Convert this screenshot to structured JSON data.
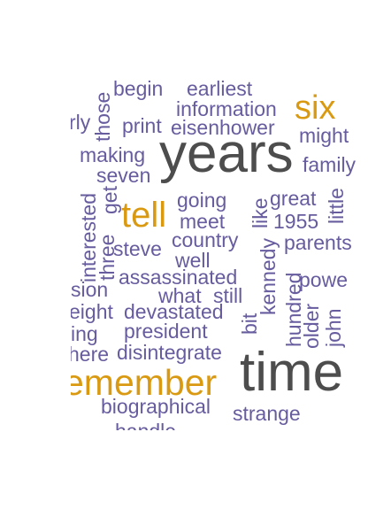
{
  "colors": {
    "small": "#665c9e",
    "medium": "#d99a12",
    "large": "#4d4d4d"
  },
  "words": [
    {
      "id": "w-years",
      "text": "years",
      "tier": "large"
    },
    {
      "id": "w-time",
      "text": "time",
      "tier": "large"
    },
    {
      "id": "w-six",
      "text": "six",
      "tier": "medium"
    },
    {
      "id": "w-tell",
      "text": "tell",
      "tier": "medium"
    },
    {
      "id": "w-remember",
      "text": "emember",
      "tier": "medium"
    },
    {
      "id": "w-begin",
      "text": "begin",
      "tier": "small"
    },
    {
      "id": "w-earliest",
      "text": "earliest",
      "tier": "small"
    },
    {
      "id": "w-information",
      "text": "information",
      "tier": "small"
    },
    {
      "id": "w-early",
      "text": "rly",
      "tier": "small"
    },
    {
      "id": "w-print",
      "text": "print",
      "tier": "small"
    },
    {
      "id": "w-eisenhower",
      "text": "eisenhower",
      "tier": "small"
    },
    {
      "id": "w-might",
      "text": "might",
      "tier": "small"
    },
    {
      "id": "w-those",
      "text": "those",
      "tier": "small"
    },
    {
      "id": "w-making",
      "text": "making",
      "tier": "small"
    },
    {
      "id": "w-family",
      "text": "family",
      "tier": "small"
    },
    {
      "id": "w-seven",
      "text": "seven",
      "tier": "small"
    },
    {
      "id": "w-going",
      "text": "going",
      "tier": "small"
    },
    {
      "id": "w-great",
      "text": "great",
      "tier": "small"
    },
    {
      "id": "w-little",
      "text": "little",
      "tier": "small"
    },
    {
      "id": "w-get",
      "text": "get",
      "tier": "small"
    },
    {
      "id": "w-meet",
      "text": "meet",
      "tier": "small"
    },
    {
      "id": "w-like",
      "text": "like",
      "tier": "small"
    },
    {
      "id": "w-1955",
      "text": "1955",
      "tier": "small"
    },
    {
      "id": "w-interested",
      "text": "interested",
      "tier": "small"
    },
    {
      "id": "w-three",
      "text": "three",
      "tier": "small"
    },
    {
      "id": "w-country",
      "text": "country",
      "tier": "small"
    },
    {
      "id": "w-parents",
      "text": "parents",
      "tier": "small"
    },
    {
      "id": "w-steve",
      "text": "steve",
      "tier": "small"
    },
    {
      "id": "w-well",
      "text": "well",
      "tier": "small"
    },
    {
      "id": "w-kennedy",
      "text": "kennedy",
      "tier": "small"
    },
    {
      "id": "w-assassinated",
      "text": "assassinated",
      "tier": "small"
    },
    {
      "id": "w-power",
      "text": "powe",
      "tier": "small"
    },
    {
      "id": "w-sion",
      "text": "sion",
      "tier": "small"
    },
    {
      "id": "w-what",
      "text": "what",
      "tier": "small"
    },
    {
      "id": "w-still",
      "text": "still",
      "tier": "small"
    },
    {
      "id": "w-hundred",
      "text": "hundred",
      "tier": "small"
    },
    {
      "id": "w-eight",
      "text": "eight",
      "tier": "small"
    },
    {
      "id": "w-devastated",
      "text": "devastated",
      "tier": "small"
    },
    {
      "id": "w-bit",
      "text": "bit",
      "tier": "small"
    },
    {
      "id": "w-older",
      "text": "older",
      "tier": "small"
    },
    {
      "id": "w-john",
      "text": "john",
      "tier": "small"
    },
    {
      "id": "w-ing",
      "text": "ing",
      "tier": "small"
    },
    {
      "id": "w-president",
      "text": "president",
      "tier": "small"
    },
    {
      "id": "w-here",
      "text": "here",
      "tier": "small"
    },
    {
      "id": "w-disintegrate",
      "text": "disintegrate",
      "tier": "small"
    },
    {
      "id": "w-biographical",
      "text": "biographical",
      "tier": "small"
    },
    {
      "id": "w-strange",
      "text": "strange",
      "tier": "small"
    },
    {
      "id": "w-handle",
      "text": "handle",
      "tier": "small"
    }
  ]
}
